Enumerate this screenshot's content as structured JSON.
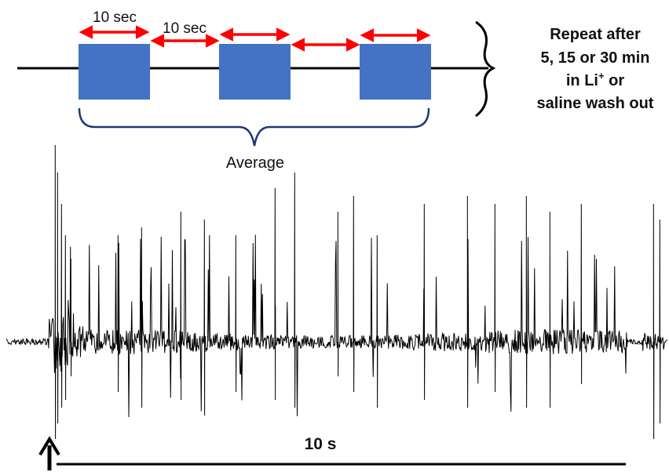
{
  "protocol": {
    "window_label": "10 sec",
    "gap_label": "10 sec",
    "average_label": "Average",
    "repeat_lines": [
      "Repeat after",
      "5, 15 or 30 min",
      "in Li",
      "or",
      "saline wash out"
    ],
    "repeat_superscript": "+",
    "window_color": "#4472C4",
    "arrow_color": "#FF0000",
    "brace_color": "#1F3A73"
  },
  "trace": {
    "scale_label": "10 s",
    "stimulus_marker": "up-arrow-icon",
    "trace_color": "#000000"
  }
}
